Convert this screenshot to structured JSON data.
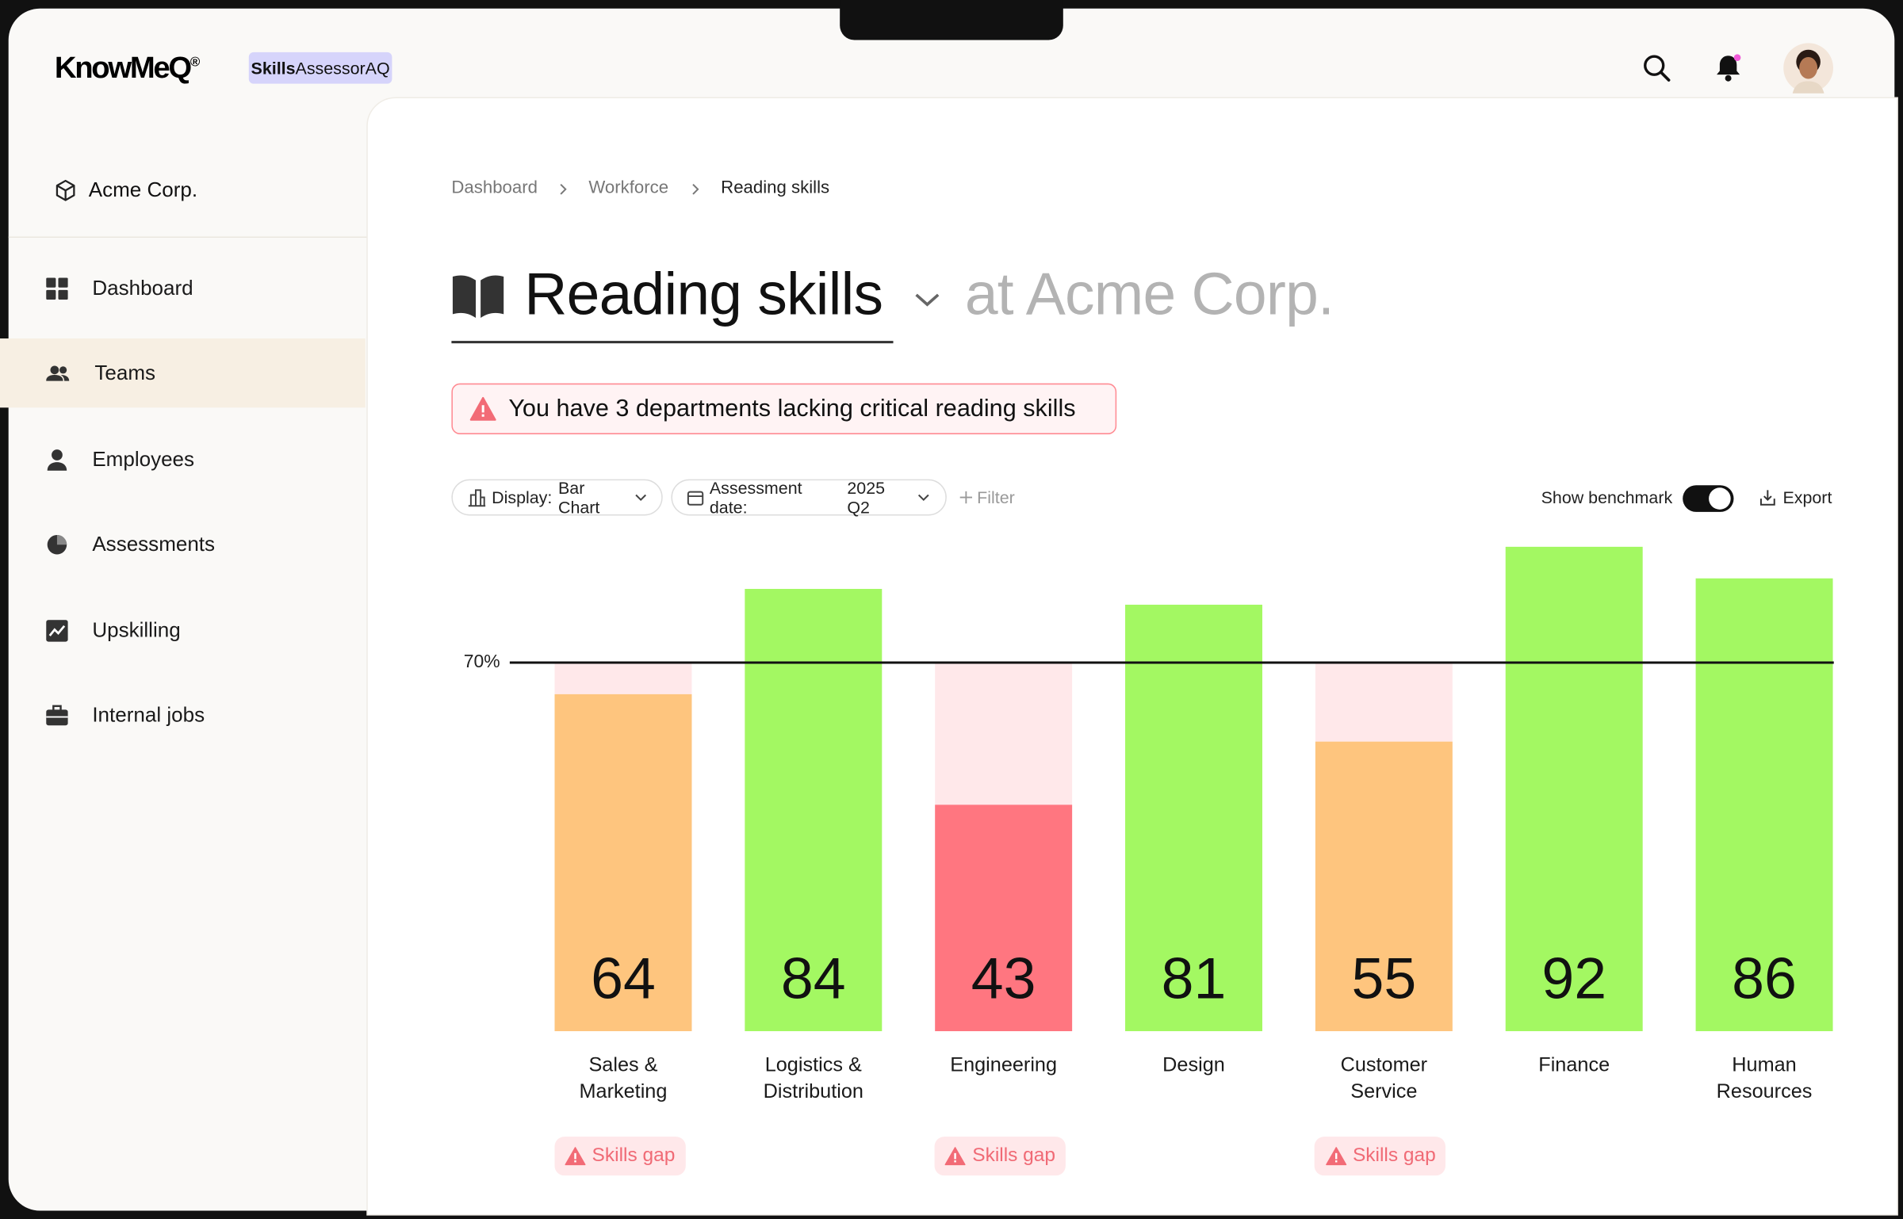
{
  "header": {
    "logo": "KnowMeQ",
    "logo_mark": "®",
    "badge_bold": "Skills",
    "badge_rest": "AssessorAQ"
  },
  "sidebar": {
    "org": "Acme Corp.",
    "nav": [
      "Dashboard",
      "Teams",
      "Employees",
      "Assessments",
      "Upskilling",
      "Internal jobs"
    ],
    "active_index": 1
  },
  "breadcrumb": [
    "Dashboard",
    "Workforce",
    "Reading skills"
  ],
  "title": {
    "skill": "Reading skills",
    "context": "at Acme Corp."
  },
  "alert": "You have 3 departments lacking critical reading skills",
  "controls": {
    "display_label": "Display:",
    "display_value": "Bar Chart",
    "date_label": "Assessment date:",
    "date_value": "2025 Q2",
    "filter": "Filter",
    "benchmark_toggle": "Show benchmark",
    "benchmark_on": true,
    "export": "Export"
  },
  "chart_data": {
    "type": "bar",
    "categories": [
      "Sales & Marketing",
      "Logistics & Distribution",
      "Engineering",
      "Design",
      "Customer Service",
      "Finance",
      "Human Resources"
    ],
    "values": [
      64,
      84,
      43,
      81,
      55,
      92,
      86
    ],
    "colors": [
      "#fec57e",
      "#a3f862",
      "#ff7680",
      "#a3f862",
      "#fec57e",
      "#a3f862",
      "#a3f862"
    ],
    "ylim": [
      0,
      100
    ],
    "benchmark": {
      "value": 70,
      "label": "70%"
    },
    "benchmark_gap_color": "#ffe8ea",
    "flags": [
      "Skills gap",
      null,
      "Skills gap",
      null,
      "Skills gap",
      null,
      null
    ]
  }
}
